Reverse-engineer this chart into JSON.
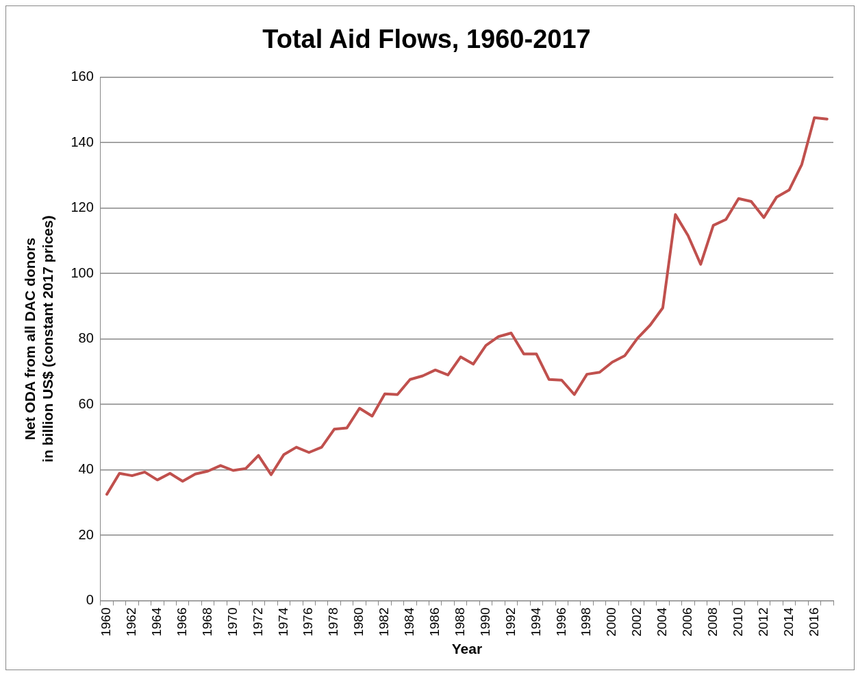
{
  "chart_data": {
    "type": "line",
    "title": "Total Aid Flows, 1960-2017",
    "xlabel": "Year",
    "ylabel": "Net ODA from all DAC donors\nin billion US$ (constant 2017 prices)",
    "categories": [
      "1960",
      null,
      "1962",
      null,
      "1964",
      null,
      "1966",
      null,
      "1968",
      null,
      "1970",
      null,
      "1972",
      null,
      "1974",
      null,
      "1976",
      null,
      "1978",
      null,
      "1980",
      null,
      "1982",
      null,
      "1984",
      null,
      "1986",
      null,
      "1988",
      null,
      "1990",
      null,
      "1992",
      null,
      "1994",
      null,
      "1996",
      null,
      "1998",
      null,
      "2000",
      null,
      "2002",
      null,
      "2004",
      null,
      "2006",
      null,
      "2008",
      null,
      "2010",
      null,
      "2012",
      null,
      "2014",
      null,
      "2016",
      null
    ],
    "series": [
      {
        "color": "#c0504d",
        "values": [
          32.5,
          38.9,
          38.2,
          39.3,
          36.9,
          38.9,
          36.5,
          38.7,
          39.6,
          41.3,
          39.8,
          40.4,
          44.4,
          38.5,
          44.6,
          46.9,
          45.3,
          46.9,
          52.4,
          52.8,
          58.8,
          56.4,
          63.2,
          63.0,
          67.6,
          68.7,
          70.5,
          69.0,
          74.5,
          72.3,
          78.0,
          80.7,
          81.8,
          75.4,
          75.4,
          67.6,
          67.4,
          63.0,
          69.2,
          69.8,
          72.9,
          74.9,
          80.2,
          84.2,
          89.5,
          118.0,
          111.6,
          102.8,
          114.7,
          116.5,
          122.9,
          122.0,
          117.1,
          123.3,
          125.5,
          133.3,
          147.6,
          147.2
        ]
      }
    ],
    "ylim": [
      0,
      160
    ],
    "yticks": [
      0,
      20,
      40,
      60,
      80,
      100,
      120,
      140,
      160
    ],
    "grid": "y",
    "legend": false,
    "marker": "none",
    "line_style": "solid"
  }
}
